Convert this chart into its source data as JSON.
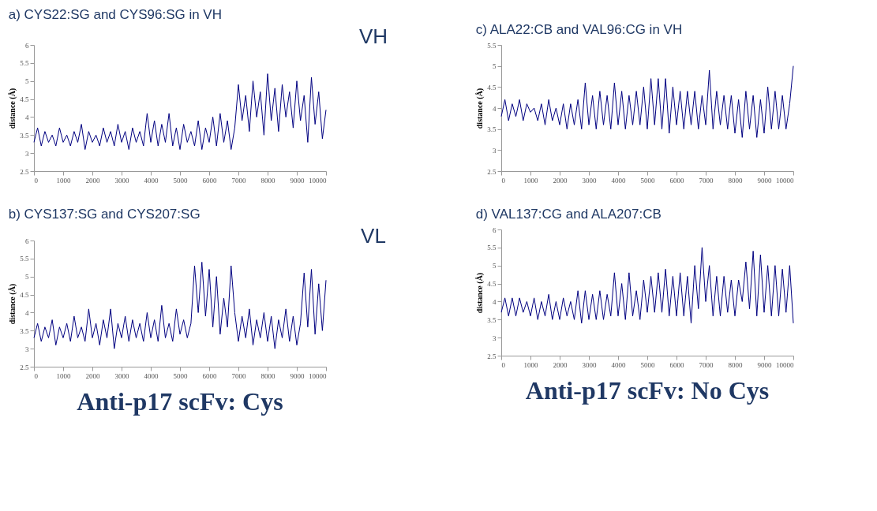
{
  "chart_data": [
    {
      "type": "line",
      "title": "a) CYS22:SG and CYS96:SG in VH",
      "ylabel": "distance (Å)",
      "annotations": [
        "VH"
      ],
      "xlim": [
        0,
        10000
      ],
      "xticks": [
        0,
        1000,
        2000,
        3000,
        4000,
        5000,
        6000,
        7000,
        8000,
        9000,
        10000
      ],
      "ylim": [
        2.5,
        6
      ],
      "yticks": [
        2.5,
        3,
        3.5,
        4,
        4.5,
        5,
        5.5,
        6
      ],
      "grid": false,
      "x": [
        0,
        125,
        250,
        375,
        500,
        625,
        750,
        875,
        1000,
        1125,
        1250,
        1375,
        1500,
        1625,
        1750,
        1875,
        2000,
        2125,
        2250,
        2375,
        2500,
        2625,
        2750,
        2875,
        3000,
        3125,
        3250,
        3375,
        3500,
        3625,
        3750,
        3875,
        4000,
        4125,
        4250,
        4375,
        4500,
        4625,
        4750,
        4875,
        5000,
        5125,
        5250,
        5375,
        5500,
        5625,
        5750,
        5875,
        6000,
        6125,
        6250,
        6375,
        6500,
        6625,
        6750,
        6875,
        7000,
        7125,
        7250,
        7375,
        7500,
        7625,
        7750,
        7875,
        8000,
        8125,
        8250,
        8375,
        8500,
        8625,
        8750,
        8875,
        9000,
        9125,
        9250,
        9375,
        9500,
        9625,
        9750,
        9875,
        10000
      ],
      "series": [
        {
          "color": "#000080",
          "values": [
            3.3,
            3.7,
            3.2,
            3.6,
            3.3,
            3.5,
            3.2,
            3.7,
            3.3,
            3.5,
            3.2,
            3.6,
            3.3,
            3.8,
            3.1,
            3.6,
            3.3,
            3.5,
            3.2,
            3.7,
            3.3,
            3.6,
            3.2,
            3.8,
            3.3,
            3.6,
            3.1,
            3.7,
            3.3,
            3.6,
            3.2,
            4.1,
            3.3,
            3.9,
            3.2,
            3.8,
            3.3,
            4.1,
            3.2,
            3.7,
            3.1,
            3.8,
            3.3,
            3.6,
            3.2,
            3.9,
            3.1,
            3.7,
            3.3,
            4.0,
            3.2,
            4.1,
            3.3,
            3.9,
            3.1,
            3.7,
            4.9,
            3.9,
            4.6,
            3.6,
            5.0,
            4.0,
            4.7,
            3.5,
            5.2,
            3.9,
            4.8,
            3.6,
            4.9,
            4.0,
            4.7,
            3.7,
            5.0,
            3.9,
            4.6,
            3.3,
            5.1,
            3.8,
            4.7,
            3.4,
            4.2
          ]
        }
      ]
    },
    {
      "type": "line",
      "title": "b) CYS137:SG and CYS207:SG",
      "ylabel": "distance (Å)",
      "annotations": [
        "VL",
        "Anti-p17 scFv: Cys"
      ],
      "xlim": [
        0,
        10000
      ],
      "xticks": [
        0,
        1000,
        2000,
        3000,
        4000,
        5000,
        6000,
        7000,
        8000,
        9000,
        10000
      ],
      "ylim": [
        2.5,
        6
      ],
      "yticks": [
        2.5,
        3,
        3.5,
        4,
        4.5,
        5,
        5.5,
        6
      ],
      "grid": false,
      "x": [
        0,
        125,
        250,
        375,
        500,
        625,
        750,
        875,
        1000,
        1125,
        1250,
        1375,
        1500,
        1625,
        1750,
        1875,
        2000,
        2125,
        2250,
        2375,
        2500,
        2625,
        2750,
        2875,
        3000,
        3125,
        3250,
        3375,
        3500,
        3625,
        3750,
        3875,
        4000,
        4125,
        4250,
        4375,
        4500,
        4625,
        4750,
        4875,
        5000,
        5125,
        5250,
        5375,
        5500,
        5625,
        5750,
        5875,
        6000,
        6125,
        6250,
        6375,
        6500,
        6625,
        6750,
        6875,
        7000,
        7125,
        7250,
        7375,
        7500,
        7625,
        7750,
        7875,
        8000,
        8125,
        8250,
        8375,
        8500,
        8625,
        8750,
        8875,
        9000,
        9125,
        9250,
        9375,
        9500,
        9625,
        9750,
        9875,
        10000
      ],
      "series": [
        {
          "color": "#000080",
          "values": [
            3.3,
            3.7,
            3.2,
            3.6,
            3.3,
            3.8,
            3.1,
            3.6,
            3.3,
            3.7,
            3.2,
            3.9,
            3.3,
            3.6,
            3.2,
            4.1,
            3.3,
            3.7,
            3.1,
            3.8,
            3.3,
            4.1,
            3.0,
            3.7,
            3.3,
            3.9,
            3.2,
            3.8,
            3.3,
            3.7,
            3.2,
            4.0,
            3.3,
            3.8,
            3.2,
            4.2,
            3.3,
            3.7,
            3.2,
            4.1,
            3.4,
            3.8,
            3.3,
            3.7,
            5.3,
            4.0,
            5.4,
            3.9,
            5.2,
            3.6,
            5.0,
            3.4,
            4.4,
            3.6,
            5.3,
            4.0,
            3.2,
            3.9,
            3.3,
            4.1,
            3.1,
            3.8,
            3.3,
            4.0,
            3.2,
            3.9,
            3.0,
            3.8,
            3.3,
            4.1,
            3.2,
            3.9,
            3.1,
            3.7,
            5.1,
            3.6,
            5.2,
            3.4,
            4.8,
            3.5,
            4.9
          ]
        }
      ]
    },
    {
      "type": "line",
      "title": "c) ALA22:CB and VAL96:CG in VH",
      "ylabel": "distance (Å)",
      "xlim": [
        0,
        10000
      ],
      "xticks": [
        0,
        1000,
        2000,
        3000,
        4000,
        5000,
        6000,
        7000,
        8000,
        9000,
        10000
      ],
      "ylim": [
        2.5,
        5.5
      ],
      "yticks": [
        2.5,
        3,
        3.5,
        4,
        4.5,
        5,
        5.5
      ],
      "grid": false,
      "x": [
        0,
        125,
        250,
        375,
        500,
        625,
        750,
        875,
        1000,
        1125,
        1250,
        1375,
        1500,
        1625,
        1750,
        1875,
        2000,
        2125,
        2250,
        2375,
        2500,
        2625,
        2750,
        2875,
        3000,
        3125,
        3250,
        3375,
        3500,
        3625,
        3750,
        3875,
        4000,
        4125,
        4250,
        4375,
        4500,
        4625,
        4750,
        4875,
        5000,
        5125,
        5250,
        5375,
        5500,
        5625,
        5750,
        5875,
        6000,
        6125,
        6250,
        6375,
        6500,
        6625,
        6750,
        6875,
        7000,
        7125,
        7250,
        7375,
        7500,
        7625,
        7750,
        7875,
        8000,
        8125,
        8250,
        8375,
        8500,
        8625,
        8750,
        8875,
        9000,
        9125,
        9250,
        9375,
        9500,
        9625,
        9750,
        9875,
        10000
      ],
      "series": [
        {
          "color": "#000080",
          "values": [
            3.8,
            4.2,
            3.7,
            4.1,
            3.8,
            4.2,
            3.7,
            4.1,
            3.9,
            4.0,
            3.7,
            4.1,
            3.6,
            4.2,
            3.7,
            4.0,
            3.6,
            4.1,
            3.5,
            4.1,
            3.6,
            4.2,
            3.5,
            4.6,
            3.6,
            4.3,
            3.5,
            4.4,
            3.6,
            4.3,
            3.5,
            4.6,
            3.6,
            4.4,
            3.5,
            4.3,
            3.6,
            4.4,
            3.6,
            4.5,
            3.5,
            4.7,
            3.6,
            4.7,
            3.5,
            4.7,
            3.4,
            4.5,
            3.6,
            4.4,
            3.5,
            4.4,
            3.6,
            4.4,
            3.5,
            4.3,
            3.6,
            4.9,
            3.5,
            4.4,
            3.6,
            4.3,
            3.5,
            4.3,
            3.4,
            4.2,
            3.3,
            4.4,
            3.5,
            4.3,
            3.3,
            4.2,
            3.4,
            4.5,
            3.5,
            4.4,
            3.5,
            4.3,
            3.5,
            4.1,
            5.0
          ]
        }
      ]
    },
    {
      "type": "line",
      "title": "d) VAL137:CG and ALA207:CB",
      "ylabel": "distance (Å)",
      "annotations": [
        "Anti-p17 scFv: No Cys"
      ],
      "xlim": [
        0,
        10000
      ],
      "xticks": [
        0,
        1000,
        2000,
        3000,
        4000,
        5000,
        6000,
        7000,
        8000,
        9000,
        10000
      ],
      "ylim": [
        2.5,
        6
      ],
      "yticks": [
        2.5,
        3,
        3.5,
        4,
        4.5,
        5,
        5.5,
        6
      ],
      "grid": false,
      "x": [
        0,
        125,
        250,
        375,
        500,
        625,
        750,
        875,
        1000,
        1125,
        1250,
        1375,
        1500,
        1625,
        1750,
        1875,
        2000,
        2125,
        2250,
        2375,
        2500,
        2625,
        2750,
        2875,
        3000,
        3125,
        3250,
        3375,
        3500,
        3625,
        3750,
        3875,
        4000,
        4125,
        4250,
        4375,
        4500,
        4625,
        4750,
        4875,
        5000,
        5125,
        5250,
        5375,
        5500,
        5625,
        5750,
        5875,
        6000,
        6125,
        6250,
        6375,
        6500,
        6625,
        6750,
        6875,
        7000,
        7125,
        7250,
        7375,
        7500,
        7625,
        7750,
        7875,
        8000,
        8125,
        8250,
        8375,
        8500,
        8625,
        8750,
        8875,
        9000,
        9125,
        9250,
        9375,
        9500,
        9625,
        9750,
        9875,
        10000
      ],
      "series": [
        {
          "color": "#000080",
          "values": [
            3.7,
            4.1,
            3.6,
            4.1,
            3.6,
            4.1,
            3.7,
            4.0,
            3.6,
            4.1,
            3.5,
            4.0,
            3.6,
            4.2,
            3.5,
            4.0,
            3.5,
            4.1,
            3.6,
            4.0,
            3.5,
            4.3,
            3.4,
            4.3,
            3.5,
            4.2,
            3.5,
            4.3,
            3.5,
            4.2,
            3.6,
            4.8,
            3.6,
            4.5,
            3.5,
            4.8,
            3.6,
            4.3,
            3.5,
            4.6,
            3.7,
            4.7,
            3.7,
            4.8,
            3.7,
            4.9,
            3.6,
            4.7,
            3.6,
            4.8,
            3.6,
            4.7,
            3.4,
            5.0,
            3.8,
            5.5,
            4.0,
            5.0,
            3.6,
            4.7,
            3.6,
            4.7,
            3.7,
            4.6,
            3.6,
            4.6,
            4.0,
            5.1,
            3.8,
            5.4,
            3.6,
            5.3,
            3.7,
            5.0,
            3.6,
            5.0,
            3.6,
            4.9,
            3.7,
            5.0,
            3.4
          ]
        }
      ]
    }
  ]
}
